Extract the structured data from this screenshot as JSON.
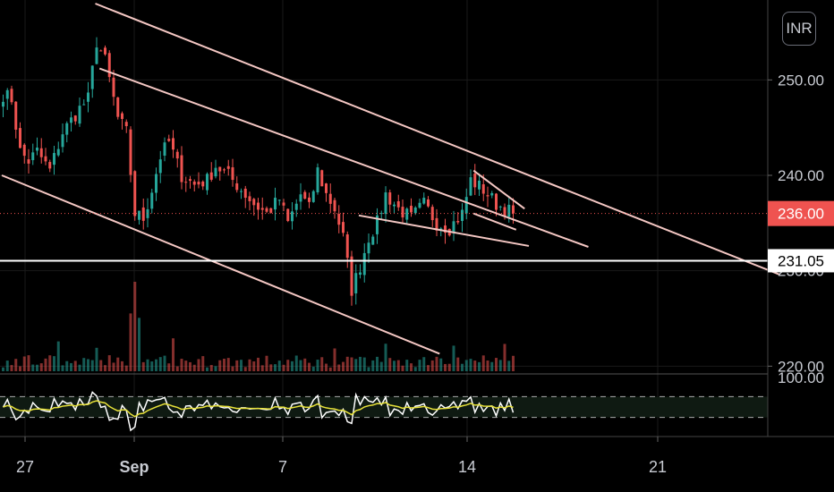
{
  "currency_badge": "INR",
  "colors": {
    "background": "#000000",
    "grid": "#1a1a1a",
    "up": "#26a69a",
    "down": "#ef5350",
    "trendline": "#f4c7c3",
    "support_line": "#ffffff",
    "price_tag": "#ef5350",
    "rsi_white": "#ffffff",
    "rsi_yellow": "#e8e23a",
    "rsi_band": "#0f1a12"
  },
  "chart_data": {
    "type": "candlestick",
    "y_axis": {
      "range": [
        219,
        258
      ],
      "ticks": [
        "250.00",
        "240.00",
        "230.00",
        "220.00"
      ]
    },
    "x_axis": {
      "ticks": [
        "27",
        "Sep",
        "7",
        "14",
        "21"
      ],
      "bold_tick": "Sep"
    },
    "price_tags": [
      {
        "label": "236.00",
        "value": 236.0,
        "style": "current"
      },
      {
        "label": "231.05",
        "value": 231.05,
        "style": "support"
      }
    ],
    "ohlc_anchor_closes": [
      [
        0,
        248.5
      ],
      [
        2,
        248.0
      ],
      [
        4,
        242.5
      ],
      [
        6,
        241.5
      ],
      [
        8,
        242.5
      ],
      [
        11,
        240.5
      ],
      [
        14,
        244.5
      ],
      [
        18,
        247.0
      ],
      [
        20,
        248.0
      ],
      [
        22,
        254.0
      ],
      [
        24,
        252.0
      ],
      [
        27,
        246.0
      ],
      [
        29,
        244.5
      ],
      [
        31,
        236.0
      ],
      [
        33,
        235.5
      ],
      [
        35,
        238.5
      ],
      [
        37,
        242.0
      ],
      [
        39,
        243.5
      ],
      [
        42,
        240.0
      ],
      [
        45,
        239.0
      ],
      [
        48,
        239.5
      ],
      [
        50,
        241.0
      ],
      [
        53,
        240.0
      ],
      [
        56,
        238.5
      ],
      [
        59,
        237.0
      ],
      [
        62,
        236.0
      ],
      [
        65,
        237.5
      ],
      [
        67,
        235.0
      ],
      [
        70,
        238.0
      ],
      [
        72,
        236.5
      ],
      [
        74,
        240.5
      ],
      [
        76,
        238.0
      ],
      [
        78,
        236.5
      ],
      [
        80,
        233.5
      ],
      [
        82,
        228.0
      ],
      [
        84,
        230.5
      ],
      [
        86,
        233.5
      ],
      [
        88,
        235.0
      ],
      [
        90,
        238.0
      ],
      [
        93,
        236.5
      ],
      [
        96,
        235.5
      ],
      [
        99,
        237.0
      ],
      [
        102,
        235.0
      ],
      [
        105,
        234.5
      ],
      [
        108,
        236.0
      ],
      [
        110,
        239.5
      ],
      [
        113,
        238.5
      ],
      [
        116,
        237.0
      ],
      [
        118,
        236.5
      ],
      [
        120,
        236.0
      ]
    ],
    "volume_range": [
      0,
      100
    ],
    "rsi": {
      "levels": [
        "100.00"
      ],
      "upper": 70,
      "lower": 30
    },
    "trendlines": [
      {
        "name": "upper-channel",
        "from": [
          22,
          258.0
        ],
        "to": [
          183,
          229.6
        ]
      },
      {
        "name": "middle-channel",
        "from": [
          23,
          251.2
        ],
        "to": [
          138,
          232.5
        ]
      },
      {
        "name": "lower-channel",
        "from": [
          0,
          240.0
        ],
        "to": [
          103,
          221.3
        ]
      },
      {
        "name": "wedge-bottom",
        "from": [
          84,
          235.8
        ],
        "to": [
          124,
          232.6
        ]
      },
      {
        "name": "wedge-top",
        "from": [
          111,
          240.5
        ],
        "to": [
          123,
          236.5
        ]
      },
      {
        "name": "wedge-lower",
        "from": [
          111,
          236.0
        ],
        "to": [
          121,
          234.3
        ]
      }
    ],
    "support_level": 231.05
  }
}
